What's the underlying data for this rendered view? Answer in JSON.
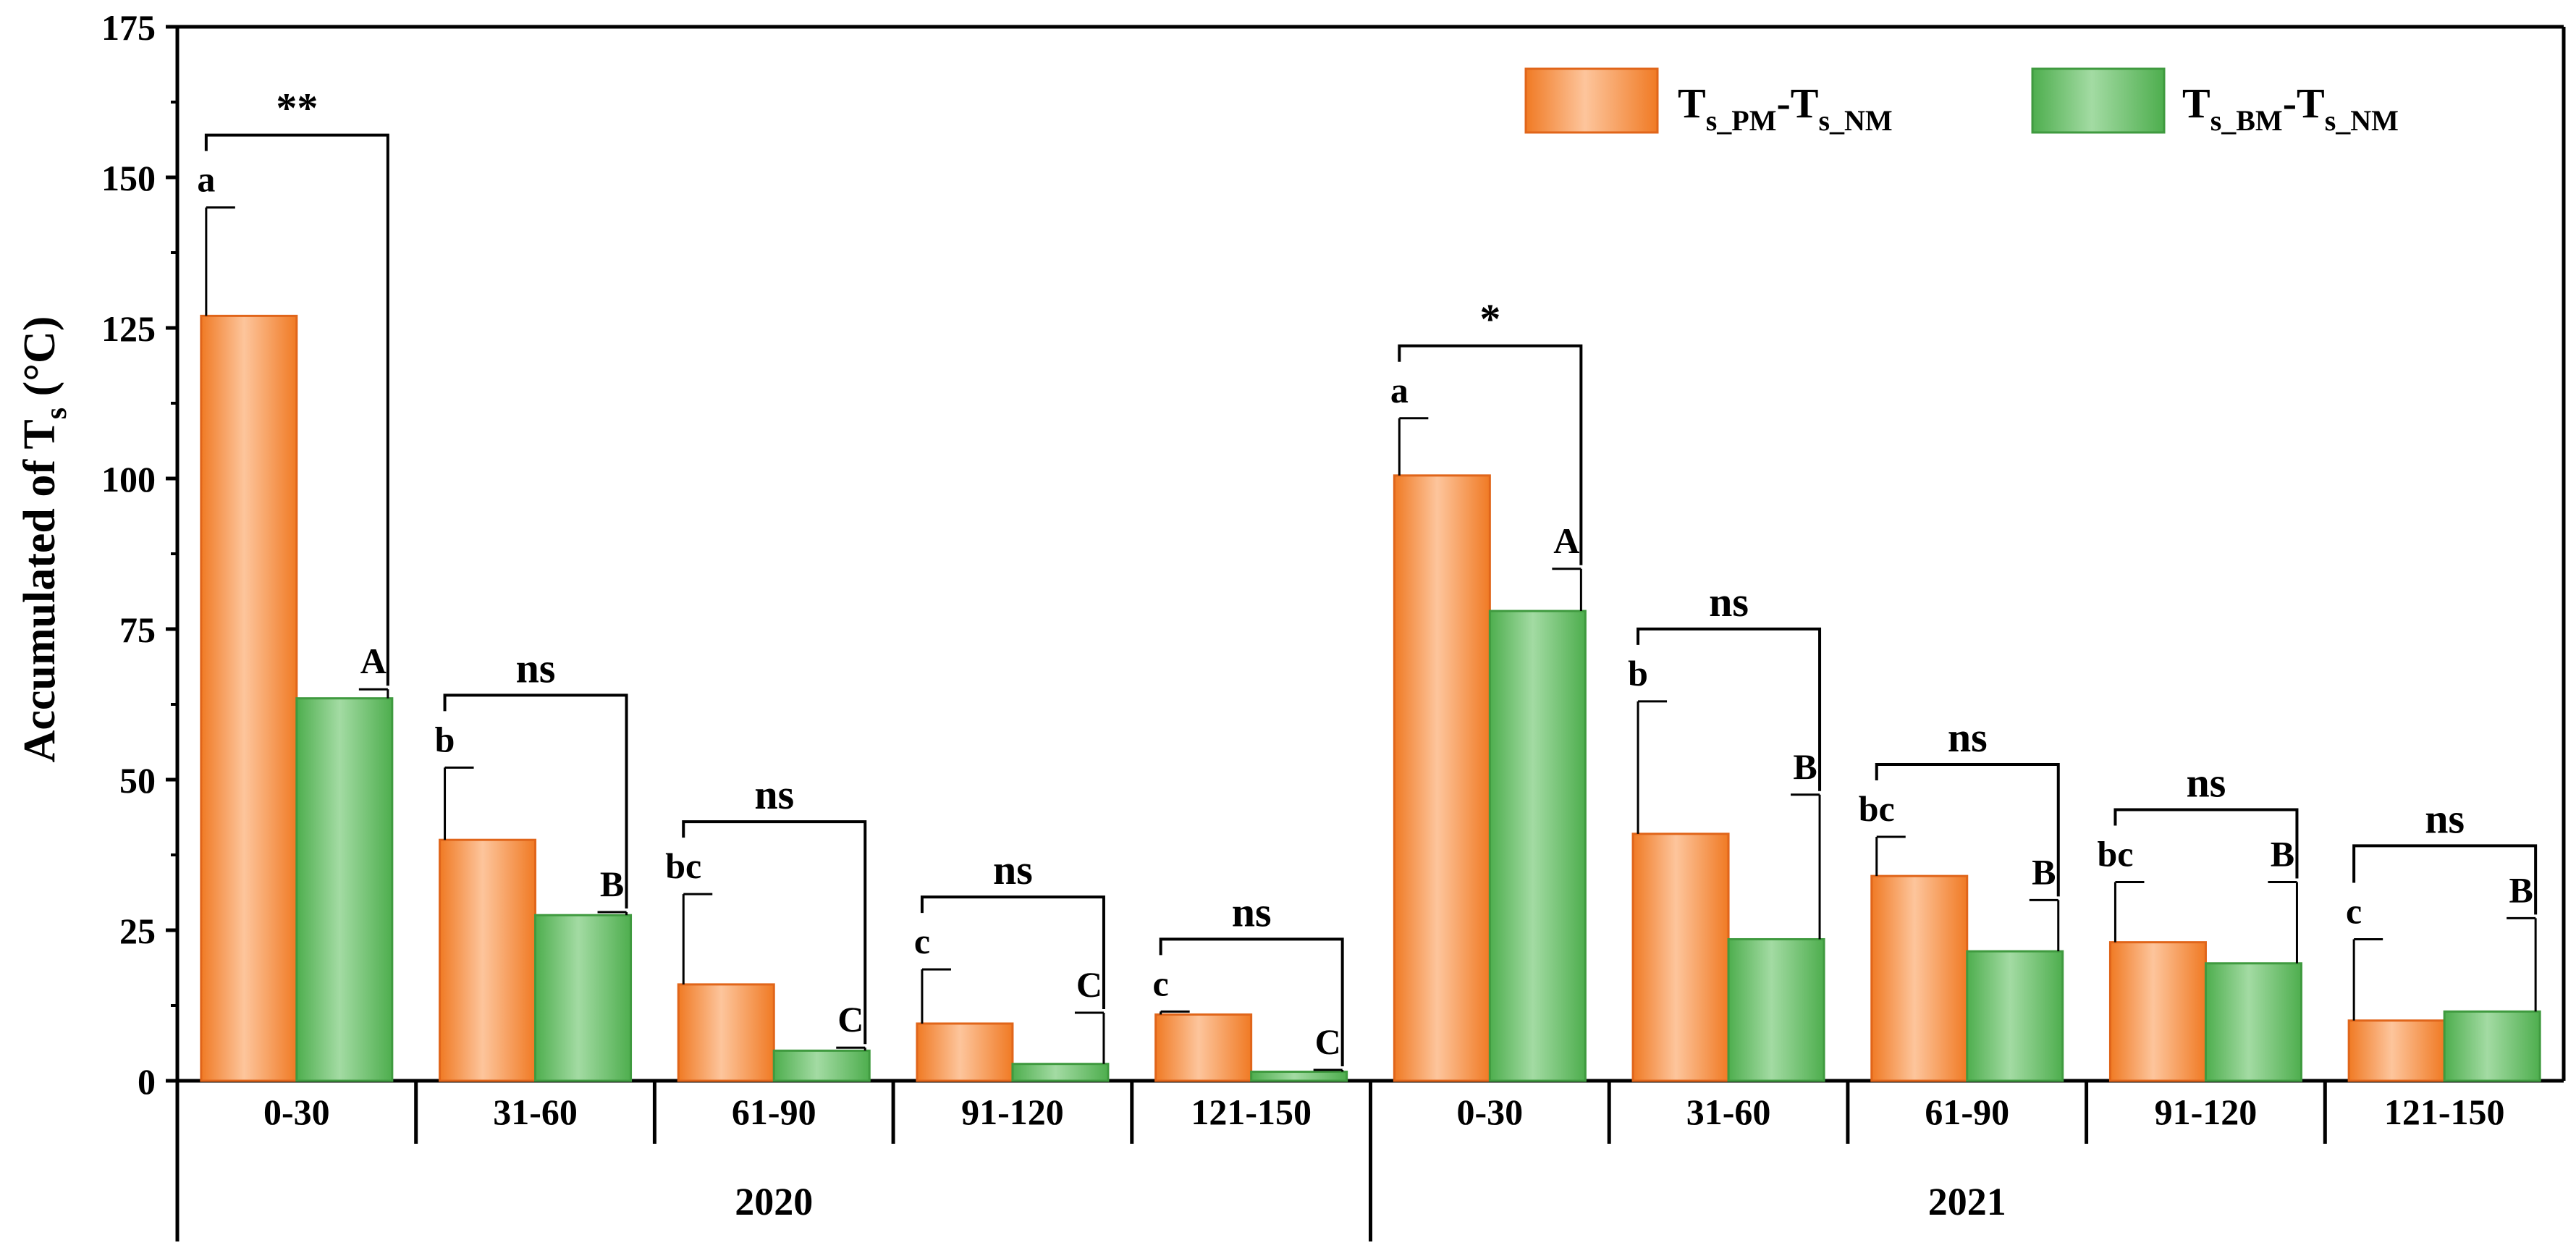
{
  "chart_data": {
    "type": "bar",
    "ylabel_main": "Accumulated of T",
    "ylabel_sub": "s",
    "ylabel_unit": " (°C)",
    "ylim": [
      0,
      175
    ],
    "yticks": [
      0,
      25,
      50,
      75,
      100,
      125,
      150,
      175
    ],
    "groups": [
      {
        "label": "2020",
        "categories": [
          "0-30",
          "31-60",
          "61-90",
          "91-120",
          "121-150"
        ],
        "pm": [
          127,
          40,
          16,
          9.5,
          11
        ],
        "pm_err": [
          18,
          12,
          15,
          9,
          0.5
        ],
        "pm_letters": [
          "a",
          "b",
          "bc",
          "c",
          "c"
        ],
        "bm": [
          63.5,
          27.5,
          5,
          2.8,
          1.5
        ],
        "bm_err": [
          1.5,
          0.5,
          0.5,
          8.5,
          0.3
        ],
        "bm_letters": [
          "A",
          "B",
          "C",
          "C",
          "C"
        ],
        "sig": [
          "**",
          "ns",
          "ns",
          "ns",
          "ns"
        ]
      },
      {
        "label": "2021",
        "categories": [
          "0-30",
          "31-60",
          "61-90",
          "91-120",
          "121-150"
        ],
        "pm": [
          100.5,
          41,
          34,
          23,
          10
        ],
        "pm_err": [
          9.5,
          22,
          6.5,
          10,
          13.5
        ],
        "pm_letters": [
          "a",
          "b",
          "bc",
          "bc",
          "c"
        ],
        "bm": [
          78,
          23.5,
          21.5,
          19.5,
          11.5
        ],
        "bm_err": [
          7,
          24,
          8.5,
          13.5,
          15.5
        ],
        "bm_letters": [
          "A",
          "B",
          "B",
          "B",
          "B"
        ],
        "sig": [
          "*",
          "ns",
          "ns",
          "ns",
          "ns"
        ]
      }
    ],
    "legend": {
      "position": "top-right",
      "items": [
        {
          "name": "series-pm",
          "label_main": "T",
          "label_sub1": "s_PM",
          "label_mid": "-T",
          "label_sub2": "s_NM",
          "color": "#f5883a"
        },
        {
          "name": "series-bm",
          "label_main": "T",
          "label_sub1": "s_BM",
          "label_mid": "-T",
          "label_sub2": "s_NM",
          "color": "#5cb85c"
        }
      ]
    }
  }
}
